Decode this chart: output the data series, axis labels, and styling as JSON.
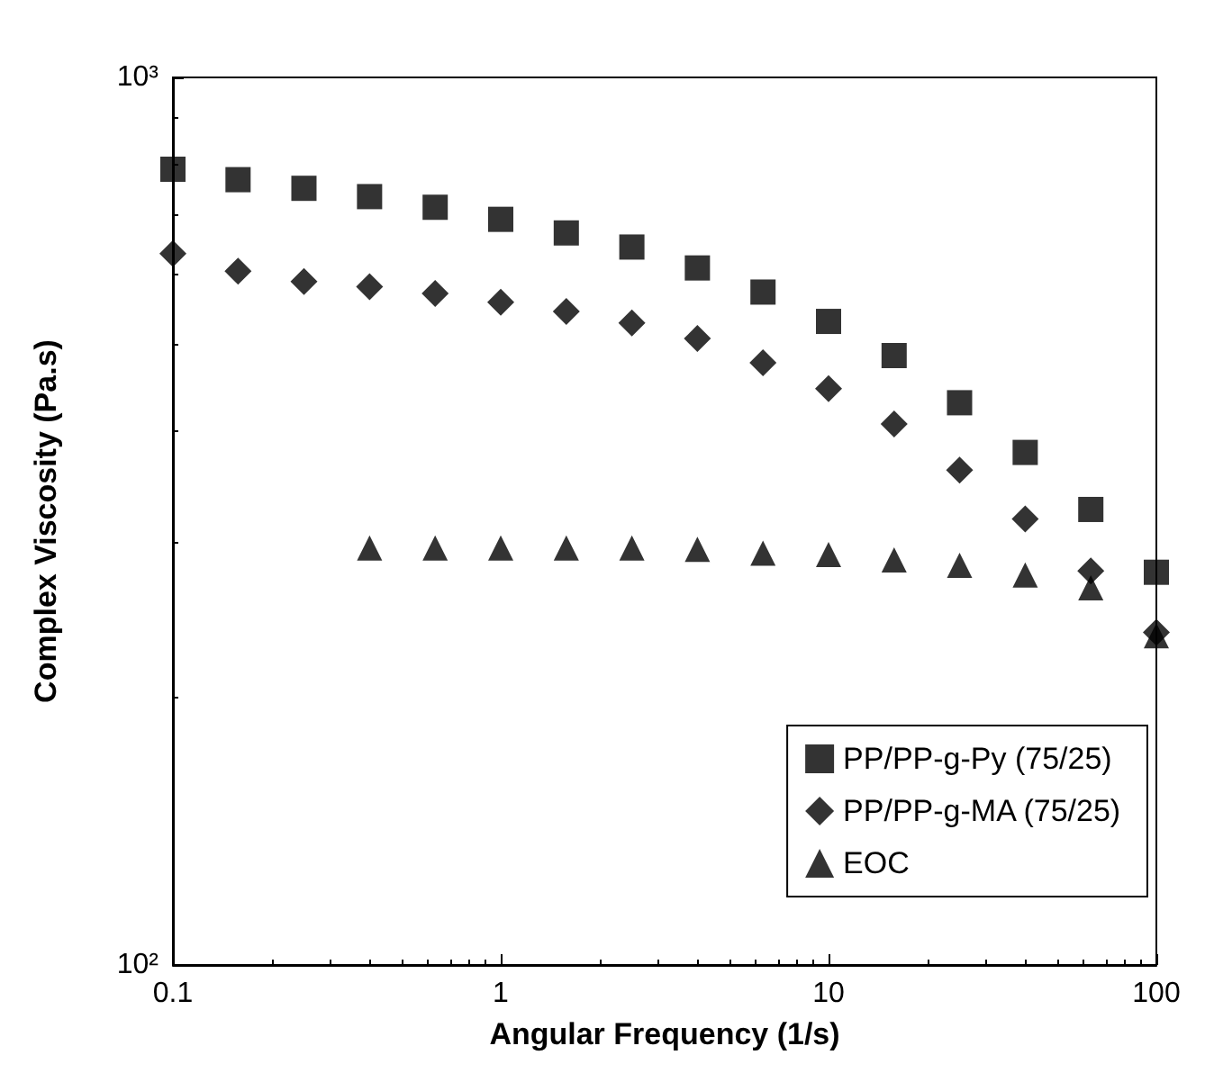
{
  "chart_data": {
    "type": "scatter",
    "xlabel": "Angular Frequency (1/s)",
    "ylabel": "Complex Viscosity (Pa.s)",
    "log": "xy",
    "xlim": [
      0.1,
      100
    ],
    "xticks": [
      0.1,
      1,
      10,
      100
    ],
    "ylim": [
      100,
      1000
    ],
    "yticks": [
      {
        "value": 100,
        "label": "10²"
      },
      {
        "value": 1000,
        "label": "10³"
      }
    ],
    "grid": false,
    "legend": "bottom right",
    "series": [
      {
        "name": "PP/PP-g-Py (75/25)",
        "color": "#000000",
        "marker": "square",
        "x": [
          0.1,
          0.158,
          0.251,
          0.398,
          0.631,
          1,
          1.585,
          2.512,
          3.98,
          6.31,
          10,
          15.85,
          25.1,
          39.8,
          63.1,
          100
        ],
        "values": [
          788,
          767,
          750,
          734,
          714,
          692,
          668,
          644,
          610,
          573,
          531,
          486,
          430,
          378,
          326,
          277
        ]
      },
      {
        "name": "PP/PP-g-MA (75/25)",
        "color": "#000000",
        "marker": "diamond",
        "x": [
          0.1,
          0.158,
          0.251,
          0.398,
          0.631,
          1,
          1.585,
          2.512,
          3.98,
          6.31,
          10,
          15.85,
          25.1,
          39.8,
          63.1,
          100
        ],
        "values": [
          633,
          605,
          589,
          581,
          571,
          558,
          545,
          529,
          508,
          477,
          446,
          407,
          361,
          318,
          278,
          237
        ]
      },
      {
        "name": "EOC",
        "color": "#000000",
        "marker": "triangle",
        "x": [
          0.398,
          0.631,
          1,
          1.585,
          2.512,
          3.98,
          6.31,
          10,
          15.85,
          25.1,
          39.8,
          63.1,
          100
        ],
        "values": [
          295,
          295,
          295,
          295,
          295,
          294,
          291,
          290,
          286,
          282,
          275,
          266,
          235
        ]
      }
    ]
  }
}
